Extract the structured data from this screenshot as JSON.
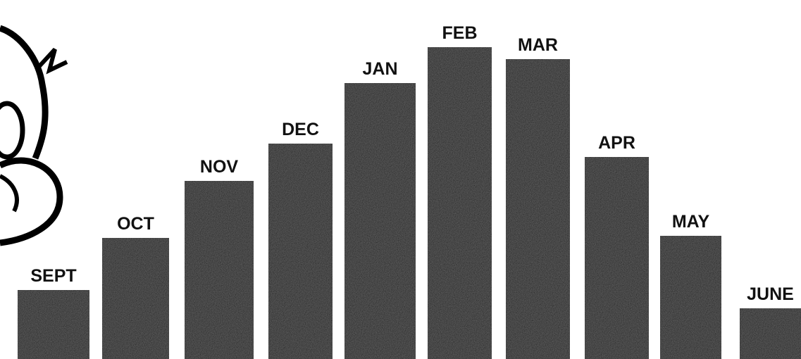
{
  "chart_data": {
    "type": "bar",
    "categories": [
      "SEPT",
      "OCT",
      "NOV",
      "DEC",
      "JAN",
      "FEB",
      "MAR",
      "APR",
      "MAY",
      "JUNE"
    ],
    "values": [
      98,
      172,
      253,
      306,
      392,
      443,
      426,
      287,
      175,
      72
    ],
    "color": "#141414"
  }
}
